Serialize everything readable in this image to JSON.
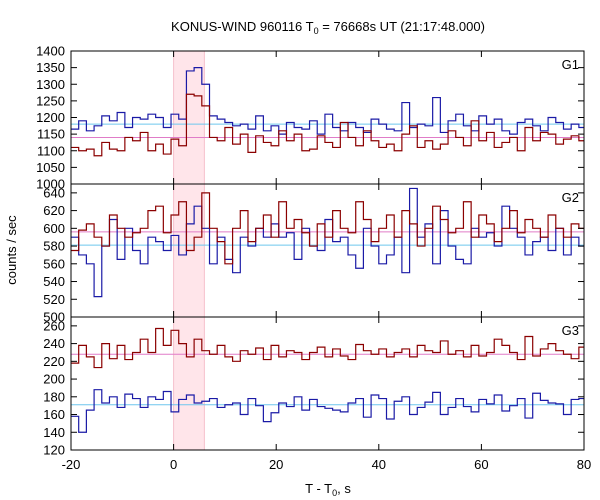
{
  "chart_data": {
    "type": "line",
    "title_main": "KONUS-WIND 960116 T",
    "title_sub": "0",
    "title_rest": " = 76668s UT (21:17:48.000)",
    "xlabel_main": "T - T",
    "xlabel_sub": "0",
    "xlabel_rest": ", s",
    "ylabel": "counts / sec",
    "xlim": [
      -20,
      80
    ],
    "x_ticks": [
      "-20",
      "0",
      "20",
      "40",
      "60",
      "80"
    ],
    "highlight_interval": [
      0,
      6
    ],
    "grid": false,
    "bin_width": 1.5,
    "bin_start": -20,
    "colors": {
      "red_series": "#8b0000",
      "blue_series": "#1a1aa6",
      "red_background": "#e07cc8",
      "blue_background": "#6ec6ee",
      "highlight": "#ffe5ea",
      "highlight_edge": "#f6c0cc"
    },
    "panels": [
      {
        "label": "G1",
        "ylim": [
          1000,
          1400
        ],
        "y_ticks": [
          "1000",
          "1050",
          "1100",
          "1150",
          "1200",
          "1250",
          "1300",
          "1350",
          "1400"
        ],
        "blue_background_level": 1180,
        "red_background_level": 1140,
        "blue_values": [
          1165,
          1190,
          1160,
          1175,
          1205,
          1190,
          1215,
          1170,
          1200,
          1195,
          1210,
          1200,
          1170,
          1210,
          1195,
          1340,
          1350,
          1300,
          1205,
          1195,
          1185,
          1175,
          1180,
          1165,
          1205,
          1160,
          1175,
          1150,
          1185,
          1170,
          1165,
          1190,
          1150,
          1210,
          1170,
          1160,
          1185,
          1170,
          1155,
          1195,
          1180,
          1165,
          1160,
          1245,
          1170,
          1180,
          1175,
          1260,
          1155,
          1190,
          1210,
          1175,
          1160,
          1205,
          1180,
          1195,
          1160,
          1150,
          1185,
          1195,
          1175,
          1160,
          1200,
          1185,
          1165,
          1180,
          1170,
          1155
        ],
        "red_values": [
          1110,
          1100,
          1105,
          1085,
          1125,
          1105,
          1100,
          1140,
          1130,
          1155,
          1100,
          1120,
          1090,
          1135,
          1115,
          1270,
          1265,
          1235,
          1140,
          1130,
          1170,
          1120,
          1150,
          1095,
          1145,
          1125,
          1115,
          1160,
          1130,
          1150,
          1100,
          1105,
          1145,
          1125,
          1110,
          1185,
          1140,
          1115,
          1160,
          1130,
          1110,
          1120,
          1100,
          1150,
          1175,
          1110,
          1130,
          1105,
          1120,
          1160,
          1140,
          1115,
          1190,
          1130,
          1155,
          1110,
          1125,
          1140,
          1100,
          1170,
          1130,
          1155,
          1150,
          1120,
          1135,
          1145,
          1130,
          1105
        ]
      },
      {
        "label": "G2",
        "ylim": [
          500,
          650
        ],
        "y_ticks": [
          "500",
          "520",
          "540",
          "560",
          "580",
          "600",
          "620",
          "640"
        ],
        "blue_background_level": 581,
        "red_background_level": 596,
        "blue_values": [
          590,
          570,
          560,
          523,
          580,
          610,
          565,
          600,
          575,
          560,
          590,
          585,
          575,
          592,
          570,
          605,
          625,
          600,
          560,
          590,
          565,
          550,
          590,
          580,
          600,
          590,
          605,
          590,
          595,
          565,
          600,
          580,
          575,
          610,
          585,
          590,
          570,
          555,
          600,
          580,
          560,
          570,
          590,
          550,
          645,
          590,
          605,
          560,
          620,
          580,
          565,
          560,
          600,
          590,
          595,
          580,
          625,
          600,
          590,
          570,
          585,
          590,
          575,
          600,
          570,
          590,
          580,
          585
        ],
        "red_values": [
          575,
          598,
          605,
          590,
          580,
          615,
          600,
          590,
          595,
          600,
          620,
          625,
          595,
          615,
          630,
          575,
          590,
          640,
          600,
          585,
          560,
          600,
          620,
          585,
          600,
          615,
          590,
          630,
          600,
          610,
          595,
          580,
          605,
          590,
          620,
          600,
          595,
          630,
          610,
          585,
          600,
          615,
          590,
          620,
          605,
          580,
          600,
          625,
          610,
          595,
          600,
          630,
          590,
          615,
          605,
          585,
          600,
          620,
          595,
          610,
          600,
          590,
          615,
          600,
          590,
          605,
          600,
          595
        ]
      },
      {
        "label": "G3",
        "ylim": [
          120,
          270
        ],
        "y_ticks": [
          "120",
          "140",
          "160",
          "180",
          "200",
          "220",
          "240",
          "260"
        ],
        "blue_background_level": 171,
        "red_background_level": 228,
        "blue_values": [
          158,
          140,
          165,
          188,
          173,
          180,
          168,
          183,
          178,
          168,
          180,
          177,
          186,
          163,
          177,
          182,
          173,
          175,
          178,
          168,
          171,
          173,
          160,
          178,
          170,
          152,
          162,
          173,
          169,
          180,
          165,
          177,
          169,
          167,
          165,
          163,
          173,
          178,
          157,
          182,
          178,
          155,
          175,
          180,
          160,
          168,
          174,
          185,
          160,
          168,
          178,
          169,
          163,
          177,
          172,
          182,
          164,
          170,
          178,
          156,
          184,
          176,
          173,
          172,
          160,
          177,
          178,
          180
        ],
        "red_values": [
          218,
          238,
          225,
          213,
          240,
          223,
          238,
          222,
          230,
          245,
          230,
          257,
          238,
          255,
          240,
          225,
          245,
          232,
          228,
          238,
          225,
          220,
          232,
          228,
          235,
          222,
          238,
          225,
          232,
          230,
          222,
          230,
          236,
          225,
          234,
          226,
          222,
          239,
          232,
          228,
          234,
          225,
          230,
          234,
          225,
          238,
          232,
          230,
          243,
          228,
          232,
          225,
          238,
          226,
          230,
          245,
          238,
          230,
          222,
          248,
          226,
          234,
          240,
          232,
          228,
          223,
          236,
          218
        ]
      }
    ]
  }
}
